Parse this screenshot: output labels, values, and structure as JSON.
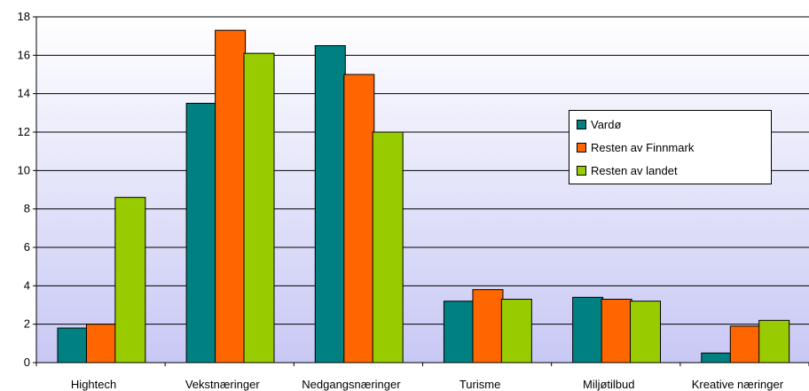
{
  "chart_data": {
    "type": "bar",
    "categories": [
      "Hightech",
      "Vekstnæringer",
      "Nedgangsnæringer",
      "Turisme",
      "Miljøtilbud",
      "Kreative næringer"
    ],
    "series": [
      {
        "name": "Vardø",
        "color": "#008080",
        "values": [
          1.8,
          13.5,
          16.5,
          3.2,
          3.4,
          0.5
        ]
      },
      {
        "name": "Resten av Finnmark",
        "color": "#FF6600",
        "values": [
          2.0,
          17.3,
          15.0,
          3.8,
          3.3,
          1.9
        ]
      },
      {
        "name": "Resten av landet",
        "color": "#99CC00",
        "values": [
          8.6,
          16.1,
          12.0,
          3.3,
          3.2,
          2.2
        ]
      }
    ],
    "ylim": [
      0,
      18
    ],
    "yticks": [
      "0",
      "2",
      "4",
      "6",
      "8",
      "10",
      "12",
      "14",
      "16",
      "18"
    ],
    "grid": true,
    "legend_position": "right",
    "background_gradient": [
      "#ffffff",
      "#c8c8f5"
    ]
  }
}
